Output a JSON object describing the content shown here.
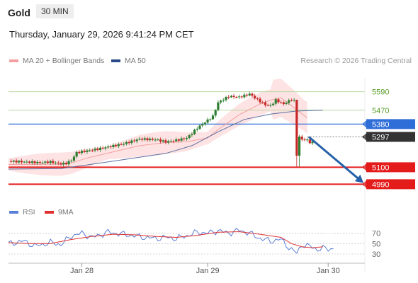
{
  "header": {
    "instrument": "Gold",
    "timeframe": "30 MIN"
  },
  "datetime": "Thursday, January 29, 2026 9:41:24 PM CET",
  "credit": "Research © 2026 Trading Central",
  "legend": {
    "ma20_label": "MA 20 + Bollinger Bands",
    "ma50_label": "MA 50",
    "rsi_label": "RSI",
    "ma9_label": "9MA"
  },
  "colors": {
    "up": "#2e7d32",
    "down": "#c62828",
    "ma20": "#f4a0a0",
    "band_fill": "#fcdada",
    "ma50": "#5a6ea0",
    "level_green": "#b7d7a1",
    "level_label_green": "#5a9e2a",
    "pivot": "#2f6ed8",
    "support": "#e41b1b",
    "current": "#333333",
    "rsi": "#5a7fd8",
    "rsi_ma": "#e03030"
  },
  "chart_data": [
    {
      "type": "candlestick",
      "title": "",
      "x_tick_labels": [
        "Jan 28",
        "Jan 29",
        "Jan 30"
      ],
      "ylim": [
        4900,
        5680
      ],
      "price_path": {
        "x_hours": [
          0,
          6,
          8,
          10,
          11,
          12,
          13,
          17,
          22,
          25,
          28,
          30,
          32,
          34,
          35,
          36,
          39,
          40,
          42,
          44,
          46,
          47,
          49,
          50,
          51,
          52.5,
          54,
          55
        ],
        "price": [
          5140,
          5130,
          5135,
          5122,
          5125,
          5145,
          5195,
          5218,
          5253,
          5283,
          5280,
          5265,
          5275,
          5290,
          5320,
          5355,
          5430,
          5520,
          5560,
          5555,
          5575,
          5550,
          5505,
          5500,
          5535,
          5510,
          5540,
          5525
        ]
      },
      "series": [
        {
          "name": "MA 20",
          "x_hours": [
            0,
            10,
            12,
            15,
            20,
            25,
            30,
            34,
            38,
            40,
            44,
            48,
            50,
            52,
            54,
            57
          ],
          "values": [
            5118,
            5120,
            5128,
            5160,
            5200,
            5240,
            5260,
            5265,
            5290,
            5345,
            5440,
            5510,
            5535,
            5550,
            5500,
            5420
          ]
        },
        {
          "name": "MA 50",
          "x_hours": [
            0,
            10,
            15,
            20,
            25,
            30,
            35,
            40,
            45,
            50,
            55,
            60
          ],
          "values": [
            5088,
            5092,
            5115,
            5140,
            5165,
            5190,
            5240,
            5330,
            5410,
            5445,
            5465,
            5470
          ]
        }
      ],
      "levels": [
        {
          "label": "5590",
          "value": 5590,
          "kind": "resistance"
        },
        {
          "label": "5470",
          "value": 5470,
          "kind": "resistance"
        },
        {
          "label": "5380",
          "value": 5380,
          "kind": "pivot"
        },
        {
          "label": "5297",
          "value": 5297,
          "kind": "current"
        },
        {
          "label": "5100",
          "value": 5100,
          "kind": "support"
        },
        {
          "label": "4990",
          "value": 4990,
          "kind": "support"
        }
      ],
      "forecast_arrow": {
        "from_price": 5297,
        "to_price": 5010,
        "direction": "down"
      }
    },
    {
      "type": "line",
      "name": "RSI panel",
      "ylim": [
        15,
        90
      ],
      "y_tick_labels": [
        "70",
        "50",
        "30"
      ],
      "series": [
        {
          "name": "RSI",
          "x_hours": [
            0,
            3,
            5,
            8,
            10,
            12,
            14,
            16,
            19,
            22,
            26,
            28,
            30,
            32,
            34,
            36,
            38,
            40,
            42,
            44,
            46,
            48,
            50,
            52,
            54,
            55,
            56,
            57,
            58,
            59,
            60,
            62
          ],
          "values": [
            50,
            55,
            45,
            52,
            48,
            65,
            70,
            62,
            72,
            68,
            62,
            60,
            62,
            60,
            65,
            72,
            70,
            75,
            70,
            76,
            70,
            60,
            55,
            58,
            38,
            32,
            48,
            45,
            44,
            38,
            41,
            40
          ]
        },
        {
          "name": "9MA",
          "x_hours": [
            0,
            4,
            8,
            12,
            16,
            20,
            24,
            28,
            32,
            36,
            40,
            44,
            48,
            52,
            54,
            56,
            58,
            60
          ],
          "values": [
            52,
            50,
            50,
            58,
            64,
            68,
            67,
            64,
            62,
            66,
            72,
            73,
            68,
            62,
            50,
            44,
            42,
            44
          ]
        }
      ]
    }
  ]
}
